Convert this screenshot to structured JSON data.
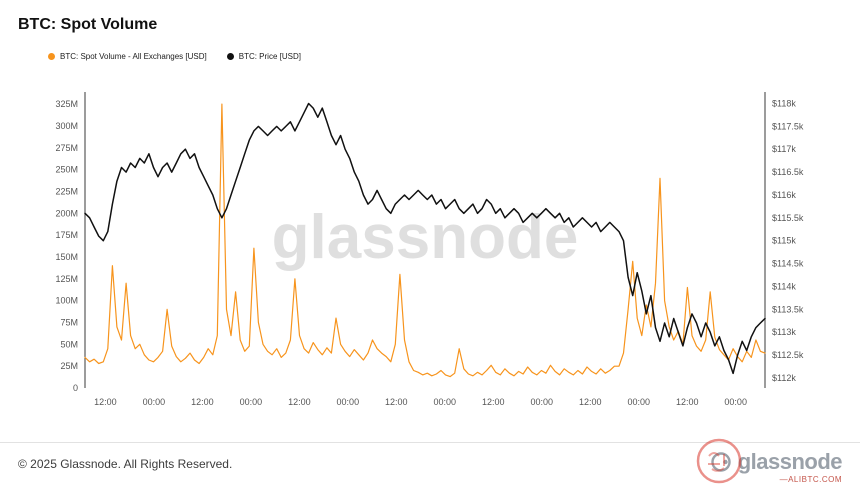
{
  "header": {
    "title": "BTC: Spot Volume"
  },
  "legend": [
    {
      "label": "BTC: Spot Volume - All Exchanges [USD]",
      "color": "#f7941d"
    },
    {
      "label": "BTC: Price [USD]",
      "color": "#111111"
    }
  ],
  "watermark": "glassnode",
  "footer": {
    "copyright": "© 2025 Glassnode. All Rights Reserved.",
    "logo_text": "glassnode",
    "stamp_text": "—ALIBTC.COM"
  },
  "chart_data": {
    "type": "line",
    "title": "BTC: Spot Volume",
    "grid": false,
    "legend_position": "top-left",
    "x_ticks": {
      "labels": [
        "12:00",
        "00:00",
        "12:00",
        "00:00",
        "12:00",
        "00:00",
        "12:00",
        "00:00",
        "12:00",
        "00:00",
        "12:00",
        "00:00",
        "12:00",
        "00:00"
      ],
      "first_fraction": 0.03,
      "step_fraction": 0.0713
    },
    "left_axis": {
      "ticks": [
        "0",
        "25M",
        "50M",
        "75M",
        "100M",
        "125M",
        "150M",
        "175M",
        "200M",
        "225M",
        "250M",
        "275M",
        "300M",
        "325M"
      ],
      "tick_values": [
        0,
        25,
        50,
        75,
        100,
        125,
        150,
        175,
        200,
        225,
        250,
        275,
        300,
        325
      ],
      "max": 332,
      "unit": "M USD"
    },
    "right_axis": {
      "ticks": [
        "$112k",
        "$112.5k",
        "$113k",
        "$113.5k",
        "$114k",
        "$114.5k",
        "$115k",
        "$115.5k",
        "$116k",
        "$116.5k",
        "$117k",
        "$117.5k",
        "$118k"
      ],
      "tick_values": [
        112,
        112.5,
        113,
        113.5,
        114,
        114.5,
        115,
        115.5,
        116,
        116.5,
        117,
        117.5,
        118
      ],
      "domain": [
        111.78,
        118.12
      ],
      "unit": "$k"
    },
    "series": [
      {
        "name": "BTC: Spot Volume - All Exchanges [USD]",
        "axis": "left",
        "color": "#f7941d",
        "width": 1.2,
        "values": [
          35,
          30,
          33,
          28,
          30,
          45,
          140,
          70,
          55,
          120,
          60,
          45,
          50,
          38,
          32,
          30,
          35,
          42,
          90,
          48,
          36,
          30,
          34,
          40,
          32,
          28,
          35,
          45,
          38,
          60,
          325,
          90,
          60,
          110,
          55,
          42,
          48,
          160,
          75,
          50,
          42,
          38,
          45,
          35,
          40,
          55,
          125,
          60,
          45,
          40,
          52,
          44,
          38,
          46,
          40,
          80,
          50,
          42,
          36,
          44,
          38,
          32,
          40,
          55,
          45,
          40,
          36,
          30,
          50,
          130,
          55,
          30,
          20,
          18,
          15,
          17,
          14,
          16,
          20,
          15,
          13,
          17,
          45,
          22,
          16,
          14,
          18,
          15,
          20,
          26,
          18,
          15,
          22,
          17,
          14,
          19,
          16,
          24,
          18,
          15,
          20,
          17,
          26,
          19,
          15,
          22,
          18,
          15,
          20,
          16,
          24,
          19,
          16,
          22,
          17,
          20,
          25,
          25,
          40,
          90,
          145,
          80,
          60,
          95,
          70,
          120,
          240,
          100,
          70,
          55,
          65,
          50,
          115,
          60,
          48,
          42,
          55,
          110,
          58,
          44,
          38,
          32,
          45,
          36,
          30,
          42,
          35,
          55,
          42,
          40
        ]
      },
      {
        "name": "BTC: Price [USD]",
        "axis": "right",
        "color": "#111111",
        "width": 1.5,
        "values": [
          115.6,
          115.5,
          115.3,
          115.1,
          115.0,
          115.2,
          115.8,
          116.3,
          116.6,
          116.5,
          116.7,
          116.6,
          116.8,
          116.7,
          116.9,
          116.6,
          116.4,
          116.6,
          116.7,
          116.5,
          116.7,
          116.9,
          117.0,
          116.8,
          116.9,
          116.6,
          116.4,
          116.2,
          116.0,
          115.7,
          115.5,
          115.7,
          116.0,
          116.3,
          116.6,
          116.9,
          117.2,
          117.4,
          117.5,
          117.4,
          117.3,
          117.4,
          117.5,
          117.4,
          117.5,
          117.6,
          117.4,
          117.6,
          117.8,
          118.0,
          117.9,
          117.7,
          117.9,
          117.6,
          117.3,
          117.1,
          117.3,
          117.0,
          116.8,
          116.5,
          116.3,
          116.0,
          115.8,
          115.9,
          116.1,
          115.9,
          115.7,
          115.6,
          115.8,
          115.9,
          116.0,
          115.9,
          116.0,
          116.1,
          116.0,
          115.9,
          116.0,
          115.8,
          115.9,
          115.7,
          115.8,
          115.9,
          115.7,
          115.6,
          115.7,
          115.8,
          115.6,
          115.7,
          115.9,
          115.8,
          115.6,
          115.7,
          115.5,
          115.6,
          115.7,
          115.6,
          115.4,
          115.5,
          115.6,
          115.5,
          115.6,
          115.7,
          115.6,
          115.5,
          115.6,
          115.4,
          115.5,
          115.3,
          115.4,
          115.5,
          115.4,
          115.3,
          115.4,
          115.2,
          115.3,
          115.4,
          115.3,
          115.2,
          115.0,
          114.2,
          113.8,
          114.3,
          113.9,
          113.4,
          113.8,
          113.1,
          112.8,
          113.2,
          112.9,
          113.3,
          113.0,
          112.7,
          113.1,
          113.4,
          113.2,
          112.9,
          113.2,
          113.0,
          112.7,
          112.9,
          112.6,
          112.4,
          112.1,
          112.5,
          112.8,
          112.6,
          112.9,
          113.1,
          113.2,
          113.3
        ]
      }
    ]
  }
}
